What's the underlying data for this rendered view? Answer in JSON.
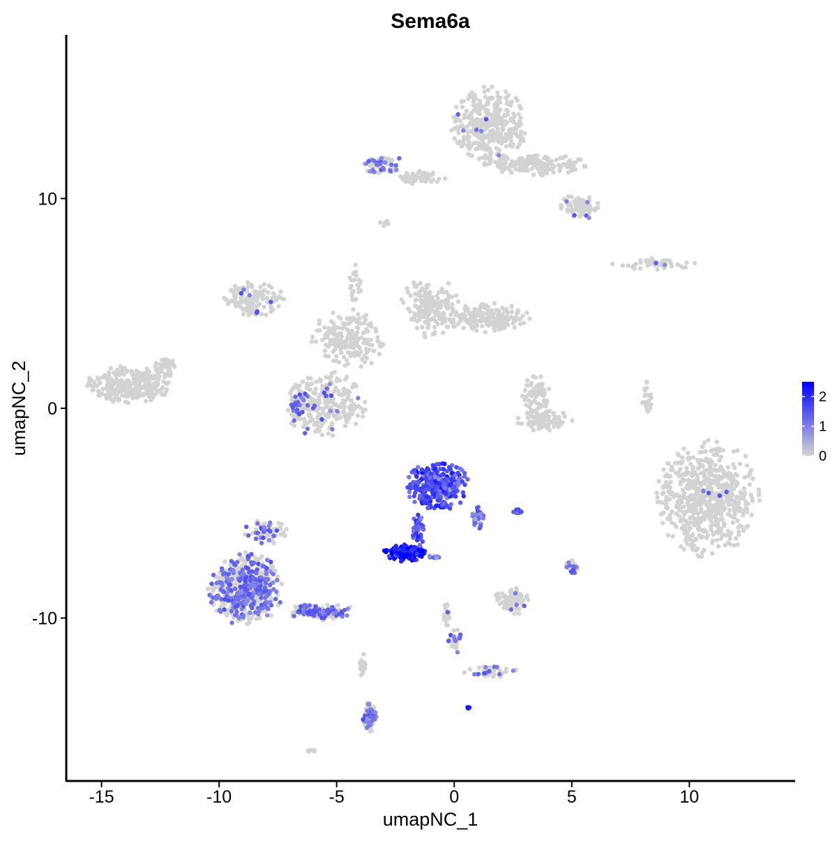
{
  "chart_data": {
    "type": "scatter",
    "title": "Sema6a",
    "xlabel": "umapNC_1",
    "ylabel": "umapNC_2",
    "xlim": [
      -16.5,
      14.5
    ],
    "ylim": [
      -17.8,
      17.8
    ],
    "xticks": [
      -15,
      -10,
      -5,
      0,
      5,
      10
    ],
    "yticks": [
      -10,
      0,
      10
    ],
    "xtick_labels": [
      "-15",
      "-10",
      "-5",
      "0",
      "5",
      "10"
    ],
    "ytick_labels": [
      "-10",
      "0",
      "10"
    ],
    "grid": false,
    "point_color_low": "#d3d3d3",
    "point_color_high": "#0000ff",
    "legend": {
      "placement": "right",
      "range": [
        0,
        2.5
      ],
      "ticks": [
        0,
        1,
        2
      ],
      "tick_labels": [
        "0",
        "1",
        "2"
      ]
    },
    "clusters": [
      {
        "cx": 1.5,
        "cy": 13.5,
        "rx": 1.6,
        "ry": 1.8,
        "n": 380,
        "expr": 0.02
      },
      {
        "cx": 3.5,
        "cy": 11.6,
        "rx": 2.2,
        "ry": 0.5,
        "n": 160,
        "expr": 0.0
      },
      {
        "cx": 5.3,
        "cy": 9.6,
        "rx": 0.9,
        "ry": 0.6,
        "n": 80,
        "expr": 0.05
      },
      {
        "cx": -1.5,
        "cy": 11.0,
        "rx": 1.3,
        "ry": 0.3,
        "n": 60,
        "expr": 0.0
      },
      {
        "cx": -3.0,
        "cy": 11.6,
        "rx": 0.9,
        "ry": 0.5,
        "n": 55,
        "expr": 0.55
      },
      {
        "cx": -3.0,
        "cy": 8.8,
        "rx": 0.3,
        "ry": 0.2,
        "n": 6,
        "expr": 0.0
      },
      {
        "cx": 8.5,
        "cy": 6.9,
        "rx": 1.8,
        "ry": 0.3,
        "n": 45,
        "expr": 0.03
      },
      {
        "cx": -8.5,
        "cy": 5.2,
        "rx": 1.3,
        "ry": 0.8,
        "n": 140,
        "expr": 0.02
      },
      {
        "cx": -4.2,
        "cy": 6.0,
        "rx": 0.3,
        "ry": 1.0,
        "n": 25,
        "expr": 0.0
      },
      {
        "cx": -4.5,
        "cy": 3.3,
        "rx": 1.6,
        "ry": 1.4,
        "n": 200,
        "expr": 0.0
      },
      {
        "cx": -1.0,
        "cy": 4.8,
        "rx": 1.3,
        "ry": 1.4,
        "n": 200,
        "expr": 0.0
      },
      {
        "cx": 1.5,
        "cy": 4.3,
        "rx": 1.7,
        "ry": 0.7,
        "n": 180,
        "expr": 0.0
      },
      {
        "cx": -5.5,
        "cy": 0.2,
        "rx": 1.7,
        "ry": 1.6,
        "n": 280,
        "expr": 0.06
      },
      {
        "cx": -6.6,
        "cy": 0.2,
        "rx": 0.4,
        "ry": 0.9,
        "n": 40,
        "expr": 0.55
      },
      {
        "cx": -13.8,
        "cy": 1.1,
        "rx": 1.8,
        "ry": 0.9,
        "n": 300,
        "expr": 0.0
      },
      {
        "cx": -12.3,
        "cy": 2.0,
        "rx": 0.5,
        "ry": 0.5,
        "n": 40,
        "expr": 0.0
      },
      {
        "cx": 3.5,
        "cy": 0.6,
        "rx": 0.6,
        "ry": 1.0,
        "n": 70,
        "expr": 0.03
      },
      {
        "cx": 3.9,
        "cy": -0.6,
        "rx": 1.2,
        "ry": 0.5,
        "n": 80,
        "expr": 0.0
      },
      {
        "cx": 8.2,
        "cy": 0.5,
        "rx": 0.2,
        "ry": 0.9,
        "n": 25,
        "expr": 0.0
      },
      {
        "cx": 10.8,
        "cy": -4.3,
        "rx": 2.2,
        "ry": 2.8,
        "n": 650,
        "expr": 0.01
      },
      {
        "cx": -0.7,
        "cy": -3.7,
        "rx": 1.3,
        "ry": 1.2,
        "n": 320,
        "expr": 1.6
      },
      {
        "cx": -2.1,
        "cy": -6.9,
        "rx": 0.9,
        "ry": 0.4,
        "n": 140,
        "expr": 2.2
      },
      {
        "cx": -1.5,
        "cy": -5.8,
        "rx": 0.3,
        "ry": 0.8,
        "n": 40,
        "expr": 1.5
      },
      {
        "cx": 1.0,
        "cy": -5.2,
        "rx": 0.3,
        "ry": 0.6,
        "n": 30,
        "expr": 1.2
      },
      {
        "cx": 2.7,
        "cy": -4.9,
        "rx": 0.3,
        "ry": 0.1,
        "n": 12,
        "expr": 1.6
      },
      {
        "cx": -0.8,
        "cy": -7.1,
        "rx": 0.3,
        "ry": 0.1,
        "n": 10,
        "expr": 1.1
      },
      {
        "cx": -8.9,
        "cy": -8.6,
        "rx": 1.6,
        "ry": 1.7,
        "n": 600,
        "expr": 0.4
      },
      {
        "cx": -8.0,
        "cy": -5.9,
        "rx": 0.9,
        "ry": 0.6,
        "n": 70,
        "expr": 0.35
      },
      {
        "cx": -5.6,
        "cy": -9.7,
        "rx": 1.4,
        "ry": 0.4,
        "n": 120,
        "expr": 0.5
      },
      {
        "cx": -3.6,
        "cy": -14.7,
        "rx": 0.3,
        "ry": 0.7,
        "n": 60,
        "expr": 0.65
      },
      {
        "cx": -3.9,
        "cy": -12.3,
        "rx": 0.15,
        "ry": 0.8,
        "n": 15,
        "expr": 0.1
      },
      {
        "cx": -6.1,
        "cy": -16.3,
        "rx": 0.2,
        "ry": 0.1,
        "n": 6,
        "expr": 0.0
      },
      {
        "cx": 5.0,
        "cy": -7.6,
        "rx": 0.3,
        "ry": 0.4,
        "n": 25,
        "expr": 0.45
      },
      {
        "cx": 2.5,
        "cy": -9.2,
        "rx": 0.8,
        "ry": 0.7,
        "n": 80,
        "expr": 0.06
      },
      {
        "cx": -0.3,
        "cy": -9.8,
        "rx": 0.15,
        "ry": 0.7,
        "n": 20,
        "expr": 0.05
      },
      {
        "cx": 0.0,
        "cy": -11.1,
        "rx": 0.3,
        "ry": 0.6,
        "n": 30,
        "expr": 0.4
      },
      {
        "cx": 1.6,
        "cy": -12.6,
        "rx": 1.2,
        "ry": 0.3,
        "n": 40,
        "expr": 0.15
      },
      {
        "cx": 0.6,
        "cy": -14.3,
        "rx": 0.1,
        "ry": 0.1,
        "n": 6,
        "expr": 2.0
      }
    ]
  }
}
